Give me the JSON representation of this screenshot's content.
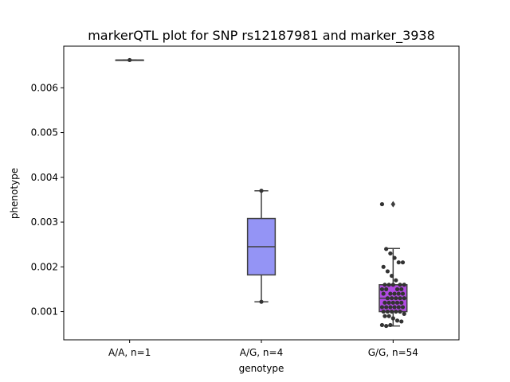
{
  "chart_data": {
    "type": "box",
    "title": "markerQTL plot for SNP rs12187981 and marker_3938",
    "xlabel": "genotype",
    "ylabel": "phenotype",
    "ylim": [
      0.00037,
      0.00693
    ],
    "yticks": [
      0.001,
      0.002,
      0.003,
      0.004,
      0.005,
      0.006
    ],
    "ytick_labels": [
      "0.001",
      "0.002",
      "0.003",
      "0.004",
      "0.005",
      "0.006"
    ],
    "grid": false,
    "categories": [
      "A/A, n=1",
      "A/G, n=4",
      "G/G, n=54"
    ],
    "boxes": [
      {
        "category": "A/A, n=1",
        "color": "#5a6ee8",
        "min": 0.00662,
        "q1": 0.00662,
        "median": 0.00662,
        "q3": 0.00662,
        "max": 0.00662,
        "outliers": [],
        "points": [
          0.00662
        ]
      },
      {
        "category": "A/G, n=4",
        "color": "#9494f5",
        "min": 0.00122,
        "q1": 0.00182,
        "median": 0.00245,
        "q3": 0.00308,
        "max": 0.0037,
        "outliers": [],
        "points": [
          0.00122,
          0.0037
        ]
      },
      {
        "category": "G/G, n=54",
        "color": "#b24be3",
        "min": 0.00068,
        "q1": 0.001,
        "median": 0.0013,
        "q3": 0.0016,
        "max": 0.00241,
        "outliers": [
          0.0034
        ],
        "points": [
          0.0034,
          0.0024,
          0.0023,
          0.0022,
          0.0021,
          0.0021,
          0.002,
          0.0019,
          0.0018,
          0.0017,
          0.0016,
          0.0016,
          0.0016,
          0.0016,
          0.0016,
          0.0015,
          0.0015,
          0.0015,
          0.0015,
          0.0014,
          0.0014,
          0.0014,
          0.0014,
          0.0014,
          0.0013,
          0.0013,
          0.0013,
          0.0013,
          0.0013,
          0.0012,
          0.0012,
          0.0012,
          0.0012,
          0.0012,
          0.0011,
          0.0011,
          0.0011,
          0.0011,
          0.0011,
          0.0011,
          0.001,
          0.001,
          0.001,
          0.001,
          0.001,
          0.00095,
          0.0009,
          0.0009,
          0.00085,
          0.0008,
          0.00078,
          0.0007,
          0.00068,
          0.0007
        ]
      }
    ]
  }
}
